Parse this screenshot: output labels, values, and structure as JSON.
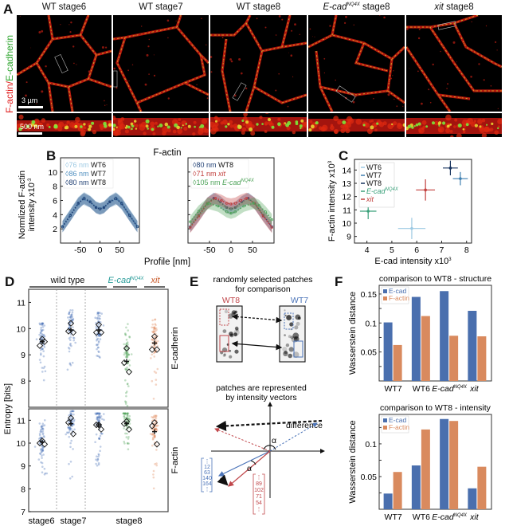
{
  "panelA": {
    "label": "A",
    "side_label_red": "F-actin",
    "side_label_sep": "/",
    "side_label_green": "E-cadherin",
    "columns": [
      {
        "title_pre": "WT stage6",
        "title_sup": "",
        "title_post": "",
        "italic": false
      },
      {
        "title_pre": "WT stage7",
        "title_sup": "",
        "title_post": "",
        "italic": false
      },
      {
        "title_pre": "WT stage8",
        "title_sup": "",
        "title_post": "",
        "italic": false
      },
      {
        "title_pre": "E-cad",
        "title_sup": "NQ4X",
        "title_post": " stage8",
        "italic": true
      },
      {
        "title_pre": "xit",
        "title_sup": "",
        "title_post": " stage8",
        "italic": true
      }
    ],
    "scalebar_top": "3 µm",
    "scalebar_bottom": "500 nm"
  },
  "panelB": {
    "label": "B",
    "title": "F-actin",
    "xlabel": "Profile [nm]",
    "ylabel_line1": "Normlized F-actin",
    "ylabel_line2": "intensity x10",
    "ylabel_sup": "-3",
    "left_legend": [
      {
        "width": "76 nm",
        "name": "WT6",
        "color": "#9cc9e3"
      },
      {
        "width": "86 nm",
        "name": "WT7",
        "color": "#4f8fc0"
      },
      {
        "width": "80 nm",
        "name": "WT8",
        "color": "#1f3f73"
      }
    ],
    "right_legend": [
      {
        "width": "80 nm",
        "name": "WT8",
        "color": "#1f3f73",
        "italic": false
      },
      {
        "width": "71 nm",
        "name": "xit",
        "color": "#c2403e",
        "italic": true
      },
      {
        "width": "105 nm",
        "name": "E-cad",
        "sup": "NQ4X",
        "color": "#4fa35a",
        "italic": true
      }
    ]
  },
  "panelC": {
    "label": "C",
    "legend": [
      {
        "name": "WT6",
        "color": "#9cc9e3",
        "italic": false,
        "sup": ""
      },
      {
        "name": "WT7",
        "color": "#3f7fb0",
        "italic": false,
        "sup": ""
      },
      {
        "name": "WT8",
        "color": "#16335e",
        "italic": false,
        "sup": ""
      },
      {
        "name": "E-cad",
        "color": "#3aa07a",
        "italic": true,
        "sup": "NQ4X"
      },
      {
        "name": "xit",
        "color": "#c2403e",
        "italic": true,
        "sup": ""
      }
    ]
  },
  "panelD": {
    "label": "D",
    "groups": [
      {
        "name": "wild type",
        "italic": false,
        "color": "#111111"
      },
      {
        "name": "E-cad",
        "sup": "NQ4X",
        "italic": true,
        "color": "#2a9d9a"
      },
      {
        "name": "xit",
        "italic": true,
        "color": "#c95a2a"
      }
    ],
    "ylabel": "Entropy [bits]",
    "row_labels": [
      "E-cadherin",
      "F-actin"
    ],
    "xlabels": [
      "stage6",
      "stage7",
      "stage8"
    ]
  },
  "panelE": {
    "label": "E",
    "title_line1": "randomly selected patches",
    "title_line2": "for comparison",
    "left_patch": "WT8",
    "right_patch": "WT7",
    "left_color": "#c0464a",
    "right_color": "#4a73b8",
    "title2_line1": "patches are represented",
    "title2_line2": "by intensity vectors",
    "difference_label": "difference",
    "alpha": "α",
    "blue_vector": [
      "⋮",
      "12",
      "63",
      "140",
      "164",
      "⋮"
    ],
    "red_vector": [
      "⋮",
      "89",
      "102",
      "71",
      "54",
      "⋮"
    ]
  },
  "panelF": {
    "label": "F"
  },
  "chart_data": [
    {
      "id": "B-left",
      "type": "line",
      "title": "F-actin",
      "xlabel": "Profile [nm]",
      "ylabel": "Normlized F-actin intensity x10^-3",
      "xlim": [
        -100,
        100
      ],
      "ylim": [
        0,
        12
      ],
      "xticks": [
        -50,
        0,
        50
      ],
      "yticks": [
        2,
        4,
        6,
        8,
        10
      ],
      "series": [
        {
          "name": "WT6",
          "peak_distance": "76 nm",
          "color": "#9cc9e3",
          "x": [
            -95,
            -75,
            -55,
            -40,
            -25,
            -10,
            0,
            10,
            25,
            40,
            55,
            75,
            95
          ],
          "y": [
            2.4,
            4.0,
            5.7,
            6.4,
            5.9,
            5.1,
            4.9,
            5.1,
            5.9,
            6.4,
            5.7,
            4.0,
            2.4
          ]
        },
        {
          "name": "WT7",
          "peak_distance": "86 nm",
          "color": "#4f8fc0",
          "x": [
            -95,
            -75,
            -55,
            -43,
            -25,
            -10,
            0,
            10,
            25,
            43,
            55,
            75,
            95
          ],
          "y": [
            2.3,
            3.9,
            5.5,
            6.2,
            5.8,
            5.0,
            4.8,
            5.0,
            5.8,
            6.2,
            5.5,
            3.9,
            2.3
          ]
        },
        {
          "name": "WT8",
          "peak_distance": "80 nm",
          "color": "#1f3f73",
          "x": [
            -95,
            -75,
            -55,
            -40,
            -25,
            -10,
            0,
            10,
            25,
            40,
            55,
            75,
            95
          ],
          "y": [
            2.3,
            3.9,
            5.6,
            6.3,
            5.8,
            5.0,
            4.8,
            5.0,
            5.8,
            6.3,
            5.6,
            3.9,
            2.3
          ]
        }
      ]
    },
    {
      "id": "B-right",
      "type": "line",
      "xlabel": "Profile [nm]",
      "xlim": [
        -100,
        100
      ],
      "ylim": [
        0,
        12
      ],
      "xticks": [
        -50,
        0,
        50
      ],
      "yticks": [
        2,
        4,
        6,
        8,
        10
      ],
      "series": [
        {
          "name": "WT8",
          "peak_distance": "80 nm",
          "color": "#1f3f73",
          "x": [
            -95,
            -75,
            -55,
            -40,
            -25,
            -10,
            0,
            10,
            25,
            40,
            55,
            75,
            95
          ],
          "y": [
            2.3,
            3.9,
            5.6,
            6.3,
            5.8,
            5.0,
            4.8,
            5.0,
            5.8,
            6.3,
            5.6,
            3.9,
            2.3
          ]
        },
        {
          "name": "xit",
          "peak_distance": "71 nm",
          "color": "#c2403e",
          "x": [
            -95,
            -75,
            -55,
            -36,
            -22,
            -10,
            0,
            10,
            22,
            36,
            55,
            75,
            95
          ],
          "y": [
            2.2,
            3.8,
            5.6,
            6.3,
            6.0,
            5.6,
            5.5,
            5.6,
            6.0,
            6.3,
            5.6,
            3.8,
            2.2
          ]
        },
        {
          "name": "E-cad NQ4X",
          "peak_distance": "105 nm",
          "color": "#4fa35a",
          "x": [
            -95,
            -75,
            -55,
            -52,
            -30,
            -10,
            0,
            10,
            30,
            52,
            65,
            80,
            95
          ],
          "y": [
            3.0,
            4.5,
            5.5,
            5.6,
            5.2,
            4.4,
            4.2,
            4.4,
            5.2,
            5.6,
            5.3,
            4.4,
            3.3
          ]
        }
      ]
    },
    {
      "id": "C",
      "type": "scatter",
      "xlabel": "E-cad intensity x10^3",
      "ylabel": "F-actin intensity x10^3",
      "xlim": [
        3.5,
        8.2
      ],
      "ylim": [
        8.5,
        14.8
      ],
      "xticks": [
        4,
        5,
        6,
        7,
        8
      ],
      "yticks": [
        9,
        10,
        11,
        12,
        13,
        14
      ],
      "legend_position": "top-left",
      "points": [
        {
          "name": "WT6",
          "x": 5.8,
          "y": 9.6,
          "xerr": 0.55,
          "yerr": 0.8,
          "color": "#9cc9e3"
        },
        {
          "name": "WT7",
          "x": 7.75,
          "y": 13.35,
          "xerr": 0.3,
          "yerr": 0.5,
          "color": "#3f7fb0"
        },
        {
          "name": "WT8",
          "x": 7.35,
          "y": 14.15,
          "xerr": 0.3,
          "yerr": 0.55,
          "color": "#16335e"
        },
        {
          "name": "E-cad NQ4X",
          "x": 4.05,
          "y": 10.9,
          "xerr": 0.33,
          "yerr": 0.6,
          "color": "#3aa07a"
        },
        {
          "name": "xit",
          "x": 6.35,
          "y": 12.5,
          "xerr": 0.38,
          "yerr": 0.8,
          "color": "#c2403e"
        }
      ]
    },
    {
      "id": "D",
      "type": "scatter",
      "ylabel": "Entropy [bits]",
      "ylim": [
        7,
        11.5
      ],
      "yticks": [
        7,
        8,
        9,
        10,
        11
      ],
      "categories": [
        "WT stage6",
        "WT stage7",
        "WT stage8",
        "E-cad NQ4X stage8",
        "xit stage8"
      ],
      "xlabels": [
        "stage6",
        "stage7",
        "stage8"
      ],
      "panels": [
        {
          "name": "E-cadherin",
          "columns": [
            {
              "color": "#4a73b8",
              "mean": 9.5,
              "diamonds": [
                9.6,
                9.35,
                9.5
              ],
              "range": [
                8.0,
                10.2
              ]
            },
            {
              "color": "#4a73b8",
              "mean": 9.95,
              "diamonds": [
                10.2,
                9.9,
                9.85
              ],
              "range": [
                8.4,
                10.7
              ]
            },
            {
              "color": "#4a73b8",
              "mean": 9.95,
              "diamonds": [
                10.15,
                9.85,
                9.85
              ],
              "range": [
                8.7,
                10.6
              ]
            },
            {
              "color": "#4fa35a",
              "mean": 8.75,
              "diamonds": [
                9.25,
                8.7,
                8.35
              ],
              "range": [
                7.0,
                10.2
              ]
            },
            {
              "color": "#e0885a",
              "mean": 9.45,
              "diamonds": [
                9.7,
                9.2,
                9.2
              ],
              "range": [
                7.3,
                10.35
              ]
            }
          ]
        },
        {
          "name": "F-actin",
          "columns": [
            {
              "color": "#4a73b8",
              "mean": 10.05,
              "diamonds": [
                10.1,
                10.0,
                9.95
              ],
              "range": [
                8.6,
                11.0
              ]
            },
            {
              "color": "#4a73b8",
              "mean": 10.85,
              "diamonds": [
                11.1,
                10.9,
                10.4
              ],
              "range": [
                8.0,
                11.4
              ]
            },
            {
              "color": "#4a73b8",
              "mean": 10.8,
              "diamonds": [
                10.8,
                10.8,
                10.6
              ],
              "range": [
                9.0,
                11.3
              ]
            },
            {
              "color": "#4fa35a",
              "mean": 10.85,
              "diamonds": [
                10.95,
                10.85,
                10.6
              ],
              "range": [
                9.7,
                11.3
              ]
            },
            {
              "color": "#e0885a",
              "mean": 10.5,
              "diamonds": [
                10.9,
                10.75,
                9.95
              ],
              "range": [
                8.0,
                11.2
              ]
            }
          ]
        }
      ]
    },
    {
      "id": "F-structure",
      "type": "bar",
      "title": "comparison to WT8 - structure",
      "ylabel": "Wasserstein distance",
      "categories": [
        "WT7",
        "WT6",
        "E-cad NQ4X",
        "xit"
      ],
      "ylim": [
        0,
        0.165
      ],
      "yticks": [
        0.05,
        0.1,
        0.15
      ],
      "legend_position": "top-left",
      "series": [
        {
          "name": "E-cad",
          "color": "#4a6fae",
          "values": [
            0.101,
            0.145,
            0.155,
            0.121
          ]
        },
        {
          "name": "F-actin",
          "color": "#d98a5e",
          "values": [
            0.062,
            0.112,
            0.078,
            0.077
          ]
        }
      ]
    },
    {
      "id": "F-intensity",
      "type": "bar",
      "title": "comparison to WT8 - intensity",
      "ylabel": "Wasserstein distance",
      "categories": [
        "WT7",
        "WT6",
        "E-cad NQ4X",
        "xit"
      ],
      "ylim": [
        0,
        0.145
      ],
      "yticks": [
        0.05,
        0.1
      ],
      "legend_position": "top-left",
      "series": [
        {
          "name": "E-cad",
          "color": "#4a6fae",
          "values": [
            0.024,
            0.067,
            0.138,
            0.032
          ]
        },
        {
          "name": "F-actin",
          "color": "#d98a5e",
          "values": [
            0.057,
            0.122,
            0.135,
            0.065
          ]
        }
      ]
    }
  ]
}
